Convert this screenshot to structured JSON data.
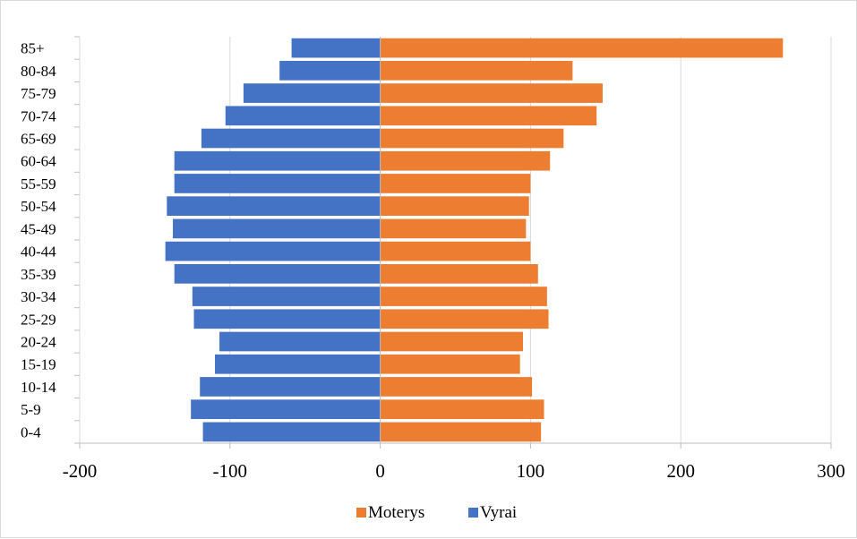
{
  "chart_data": {
    "type": "bar",
    "orientation": "horizontal",
    "stacked": true,
    "categories": [
      "0-4",
      "5-9",
      "10-14",
      "15-19",
      "20-24",
      "25-29",
      "30-34",
      "35-39",
      "40-44",
      "45-49",
      "50-54",
      "55-59",
      "60-64",
      "65-69",
      "70-74",
      "75-79",
      "80-84",
      "85+"
    ],
    "series": [
      {
        "name": "Moterys",
        "color": "#ED7D31",
        "values": [
          107,
          109,
          101,
          93,
          95,
          112,
          111,
          105,
          100,
          97,
          99,
          100,
          113,
          122,
          144,
          148,
          128,
          268
        ]
      },
      {
        "name": "Vyrai",
        "color": "#4472C4",
        "values": [
          -118,
          -126,
          -120,
          -110,
          -107,
          -124,
          -125,
          -137,
          -143,
          -138,
          -142,
          -137,
          -137,
          -119,
          -103,
          -91,
          -67,
          -59
        ]
      }
    ],
    "xlim": [
      -200,
      300
    ],
    "xticks": [
      "-200",
      "-100",
      "0",
      "100",
      "200",
      "300"
    ],
    "grid": true,
    "legend_position": "bottom",
    "legend": [
      "Moterys",
      "Vyrai"
    ]
  }
}
